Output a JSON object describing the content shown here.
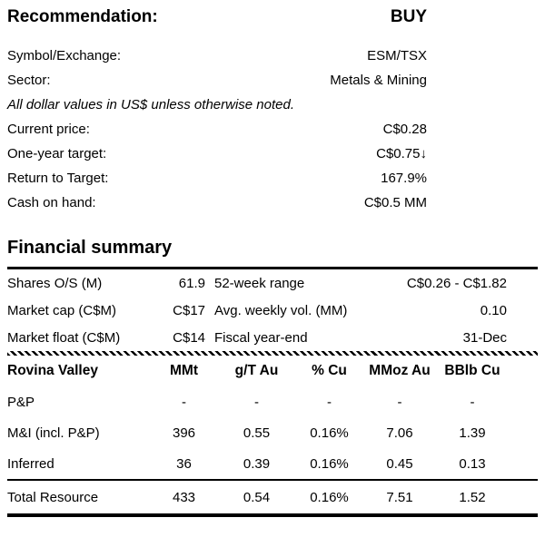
{
  "header": {
    "recommendation_label": "Recommendation:",
    "recommendation_value": "BUY",
    "rows": [
      {
        "label": "Symbol/Exchange:",
        "value": "ESM/TSX"
      },
      {
        "label": "Sector:",
        "value": "Metals & Mining"
      }
    ],
    "note": "All dollar values in US$ unless otherwise noted.",
    "price_rows": [
      {
        "label": "Current price:",
        "value": "C$0.28"
      },
      {
        "label": "One-year target:",
        "value": "C$0.75↓"
      },
      {
        "label": "Return to Target:",
        "value": "167.9%"
      },
      {
        "label": "Cash on hand:",
        "value": "C$0.5 MM"
      }
    ]
  },
  "financial_summary": {
    "title": "Financial summary",
    "rows": [
      {
        "label1": "Shares O/S (M)",
        "value1": "61.9",
        "label2": "52-week range",
        "value2": "C$0.26 - C$1.82"
      },
      {
        "label1": "Market cap (C$M)",
        "value1": "C$17",
        "label2": "Avg. weekly vol. (MM)",
        "value2": "0.10"
      },
      {
        "label1": "Market float (C$M)",
        "value1": "C$14",
        "label2": "Fiscal year-end",
        "value2": "31-Dec"
      }
    ]
  },
  "resource_table": {
    "headers": [
      "Rovina Valley",
      "MMt",
      "g/T Au",
      "% Cu",
      "MMoz Au",
      "BBlb Cu"
    ],
    "rows": [
      [
        "P&P",
        "-",
        "-",
        "-",
        "-",
        "-"
      ],
      [
        "M&I (incl. P&P)",
        "396",
        "0.55",
        "0.16%",
        "7.06",
        "1.39"
      ],
      [
        "Inferred",
        "36",
        "0.39",
        "0.16%",
        "0.45",
        "0.13"
      ]
    ],
    "total_row": [
      "Total Resource",
      "433",
      "0.54",
      "0.16%",
      "7.51",
      "1.52"
    ]
  }
}
